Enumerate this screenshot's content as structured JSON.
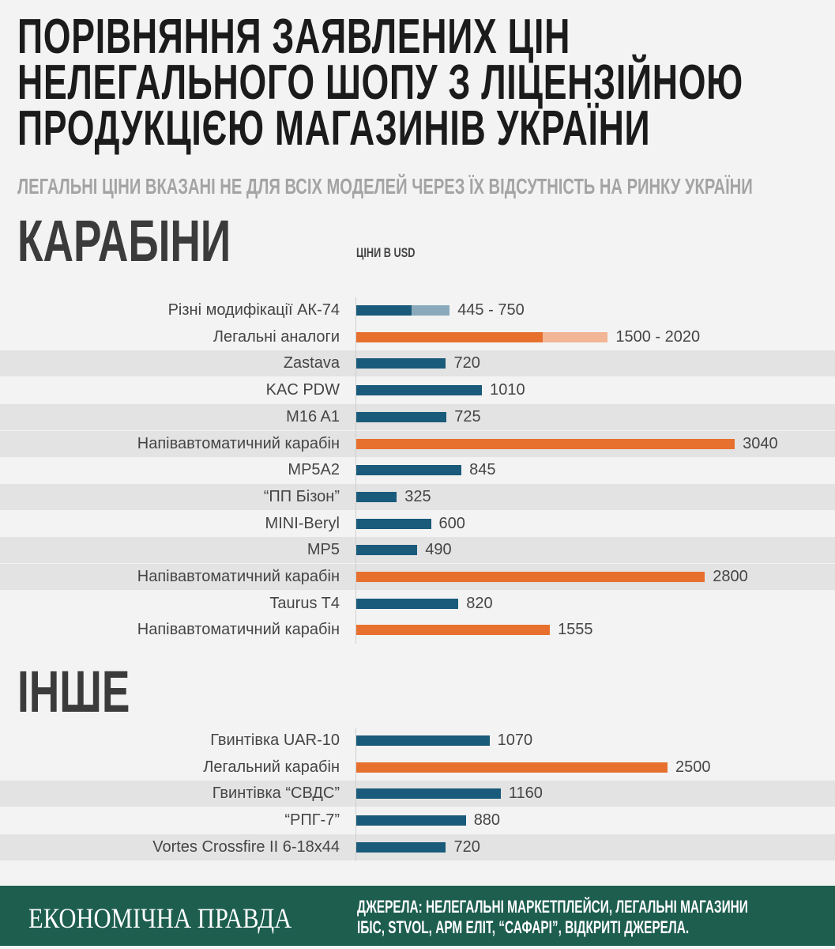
{
  "title": "ПОРІВНЯННЯ ЗАЯВЛЕНИХ ЦІН НЕЛЕГАЛЬНОГО ШОПУ З ЛІЦЕНЗІЙНОЮ ПРОДУКЦІЄЮ МАГАЗИНІВ УКРАЇНИ",
  "subtitle": "ЛЕГАЛЬНІ ЦІНИ ВКАЗАНІ НЕ ДЛЯ ВСІХ МОДЕЛЕЙ ЧЕРЕЗ ЇХ ВІДСУТНІСТЬ НА РИНКУ УКРАЇНИ",
  "colors": {
    "illegal": "#1a5a7a",
    "illegal_light": "#8aaabb",
    "legal": "#e8702f",
    "legal_light": "#f2b595",
    "footer": "#1d5e4f"
  },
  "chart_data": [
    {
      "type": "bar",
      "title": "КАРАБІНИ",
      "units_label": "ЦІНИ В USD",
      "orientation": "horizontal",
      "rows": [
        {
          "label": "Різні модифікації АК-74",
          "min": 445,
          "max": 750,
          "value_label": "445 - 750",
          "kind": "illegal",
          "band": false
        },
        {
          "label": "Легальні аналоги",
          "min": 1500,
          "max": 2020,
          "value_label": "1500 - 2020",
          "kind": "legal",
          "band": false
        },
        {
          "label": "Zastava",
          "value": 720,
          "value_label": "720",
          "kind": "illegal",
          "band": true
        },
        {
          "label": "KAC PDW",
          "value": 1010,
          "value_label": "1010",
          "kind": "illegal",
          "band": false
        },
        {
          "label": "M16 A1",
          "value": 725,
          "value_label": "725",
          "kind": "illegal",
          "band": true
        },
        {
          "label": "Напівавтоматичний карабін",
          "value": 3040,
          "value_label": "3040",
          "kind": "legal",
          "band": true
        },
        {
          "label": "MP5A2",
          "value": 845,
          "value_label": "845",
          "kind": "illegal",
          "band": false
        },
        {
          "label": "“ПП Бізон”",
          "value": 325,
          "value_label": "325",
          "kind": "illegal",
          "band": true
        },
        {
          "label": "MINI-Beryl",
          "value": 600,
          "value_label": "600",
          "kind": "illegal",
          "band": false
        },
        {
          "label": "MP5",
          "value": 490,
          "value_label": "490",
          "kind": "illegal",
          "band": true
        },
        {
          "label": "Напівавтоматичний карабін",
          "value": 2800,
          "value_label": "2800",
          "kind": "legal",
          "band": true
        },
        {
          "label": "Taurus T4",
          "value": 820,
          "value_label": "820",
          "kind": "illegal",
          "band": false
        },
        {
          "label": "Напівавтоматичний карабін",
          "value": 1555,
          "value_label": "1555",
          "kind": "legal",
          "band": false
        }
      ]
    },
    {
      "type": "bar",
      "title": "ІНШЕ",
      "orientation": "horizontal",
      "rows": [
        {
          "label": "Гвинтівка UAR-10",
          "value": 1070,
          "value_label": "1070",
          "kind": "illegal",
          "band": false
        },
        {
          "label": "Легальний карабін",
          "value": 2500,
          "value_label": "2500",
          "kind": "legal",
          "band": false
        },
        {
          "label": "Гвинтівка “СВДС”",
          "value": 1160,
          "value_label": "1160",
          "kind": "illegal",
          "band": true
        },
        {
          "label": "“РПГ-7”",
          "value": 880,
          "value_label": "880",
          "kind": "illegal",
          "band": false
        },
        {
          "label": "Vortes Crossfire II 6-18x44",
          "value": 720,
          "value_label": "720",
          "kind": "illegal",
          "band": true
        }
      ]
    }
  ],
  "footer": {
    "logo": "ЕКОНОМІЧНА ПРАВДА",
    "sources": "ДЖЕРЕЛА: НЕЛЕГАЛЬНІ МАРКЕТПЛЕЙСИ, ЛЕГАЛЬНІ МАГАЗИНИ IБІС, STVOL, АРМ ЕЛІТ, “САФАРІ”, ВІДКРИТІ ДЖЕРЕЛА."
  }
}
